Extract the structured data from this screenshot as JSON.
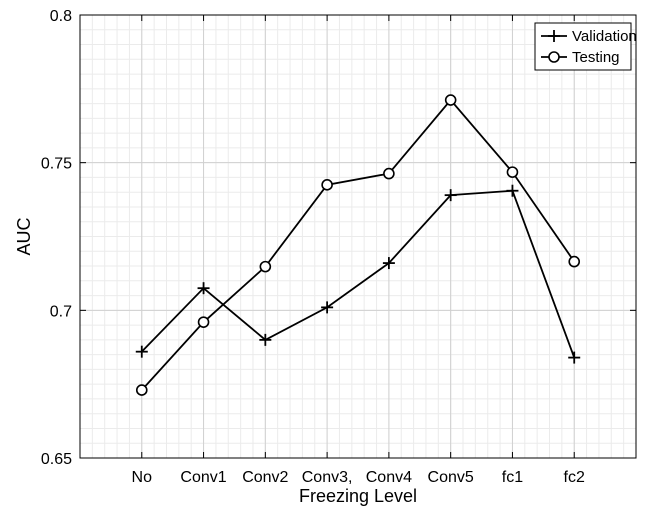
{
  "chart_data": {
    "type": "line",
    "categories": [
      "No",
      "Conv1",
      "Conv2",
      "Conv3,",
      "Conv4",
      "Conv5",
      "fc1",
      "fc2"
    ],
    "series": [
      {
        "name": "Validation",
        "marker": "plus",
        "values": [
          0.686,
          0.7075,
          0.69,
          0.701,
          0.716,
          0.739,
          0.7405,
          0.684
        ]
      },
      {
        "name": "Testing",
        "marker": "circle",
        "values": [
          0.673,
          0.696,
          0.7148,
          0.7425,
          0.7463,
          0.7712,
          0.7468,
          0.7165
        ]
      }
    ],
    "xlabel": "Freezing Level",
    "ylabel": "AUC",
    "ylim": [
      0.65,
      0.8
    ],
    "yticks": [
      0.65,
      0.7,
      0.75,
      0.8
    ],
    "ytick_labels": [
      "0.65",
      "0.7",
      "0.75",
      "0.8"
    ],
    "grid": true,
    "minor_grid": true,
    "legend_position": "top-right",
    "line_color": "#000000"
  }
}
